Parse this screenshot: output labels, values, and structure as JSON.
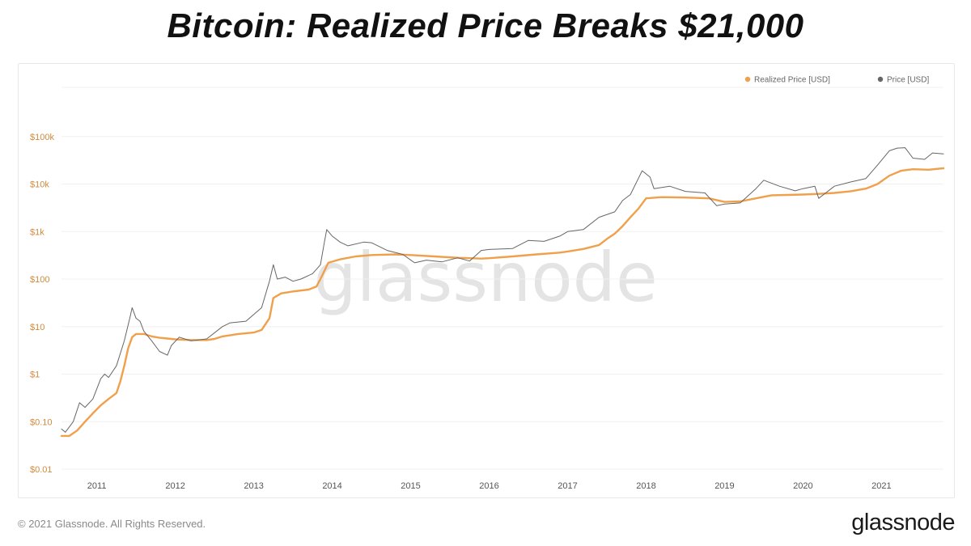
{
  "title": "Bitcoin: Realized Price Breaks $21,000",
  "footer": {
    "copyright": "© 2021 Glassnode. All Rights Reserved.",
    "brand": "glassnode"
  },
  "watermark": "glassnode",
  "colors": {
    "realized": "#f0a04b",
    "price": "#666666",
    "y_tick": "#d08a3c",
    "grid": "#f0f0f0"
  },
  "chart_data": {
    "type": "line",
    "yscale": "log",
    "ylim": [
      0.01,
      1000000
    ],
    "xlim": [
      2010.55,
      2021.79
    ],
    "grid": "horizontal",
    "legend_position": "top-right",
    "y_ticks": [
      {
        "label": "$0.01",
        "value": 0.01
      },
      {
        "label": "$0.10",
        "value": 0.1
      },
      {
        "label": "$1",
        "value": 1
      },
      {
        "label": "$10",
        "value": 10
      },
      {
        "label": "$100",
        "value": 100
      },
      {
        "label": "$1k",
        "value": 1000
      },
      {
        "label": "$10k",
        "value": 10000
      },
      {
        "label": "$100k",
        "value": 100000
      }
    ],
    "x_ticks": [
      {
        "label": "2011",
        "value": 2011
      },
      {
        "label": "2012",
        "value": 2012
      },
      {
        "label": "2013",
        "value": 2013
      },
      {
        "label": "2014",
        "value": 2014
      },
      {
        "label": "2015",
        "value": 2015
      },
      {
        "label": "2016",
        "value": 2016
      },
      {
        "label": "2017",
        "value": 2017
      },
      {
        "label": "2018",
        "value": 2018
      },
      {
        "label": "2019",
        "value": 2019
      },
      {
        "label": "2020",
        "value": 2020
      },
      {
        "label": "2021",
        "value": 2021
      }
    ],
    "series": [
      {
        "name": "Realized Price [USD]",
        "color": "#f0a04b",
        "points": [
          [
            2010.55,
            0.05
          ],
          [
            2010.65,
            0.05
          ],
          [
            2010.75,
            0.065
          ],
          [
            2010.85,
            0.1
          ],
          [
            2010.95,
            0.15
          ],
          [
            2011.05,
            0.22
          ],
          [
            2011.15,
            0.3
          ],
          [
            2011.25,
            0.4
          ],
          [
            2011.3,
            0.7
          ],
          [
            2011.35,
            1.5
          ],
          [
            2011.4,
            3.5
          ],
          [
            2011.45,
            6.0
          ],
          [
            2011.5,
            7.0
          ],
          [
            2011.6,
            7.0
          ],
          [
            2011.7,
            6.2
          ],
          [
            2011.8,
            5.8
          ],
          [
            2011.9,
            5.6
          ],
          [
            2012.0,
            5.4
          ],
          [
            2012.2,
            5.2
          ],
          [
            2012.4,
            5.2
          ],
          [
            2012.5,
            5.5
          ],
          [
            2012.6,
            6.2
          ],
          [
            2012.8,
            7.0
          ],
          [
            2013.0,
            7.5
          ],
          [
            2013.1,
            8.5
          ],
          [
            2013.2,
            15
          ],
          [
            2013.25,
            40
          ],
          [
            2013.35,
            50
          ],
          [
            2013.5,
            55
          ],
          [
            2013.7,
            60
          ],
          [
            2013.8,
            70
          ],
          [
            2013.85,
            100
          ],
          [
            2013.95,
            220
          ],
          [
            2014.1,
            260
          ],
          [
            2014.3,
            300
          ],
          [
            2014.5,
            320
          ],
          [
            2014.8,
            330
          ],
          [
            2015.0,
            320
          ],
          [
            2015.3,
            300
          ],
          [
            2015.6,
            280
          ],
          [
            2015.9,
            270
          ],
          [
            2016.0,
            275
          ],
          [
            2016.3,
            300
          ],
          [
            2016.6,
            330
          ],
          [
            2016.9,
            360
          ],
          [
            2017.0,
            380
          ],
          [
            2017.2,
            430
          ],
          [
            2017.4,
            520
          ],
          [
            2017.5,
            700
          ],
          [
            2017.6,
            900
          ],
          [
            2017.7,
            1300
          ],
          [
            2017.8,
            2000
          ],
          [
            2017.9,
            3000
          ],
          [
            2018.0,
            5000
          ],
          [
            2018.2,
            5300
          ],
          [
            2018.5,
            5200
          ],
          [
            2018.8,
            5000
          ],
          [
            2019.0,
            4200
          ],
          [
            2019.2,
            4300
          ],
          [
            2019.4,
            5000
          ],
          [
            2019.6,
            5800
          ],
          [
            2019.8,
            5900
          ],
          [
            2020.0,
            6000
          ],
          [
            2020.2,
            6200
          ],
          [
            2020.4,
            6500
          ],
          [
            2020.6,
            7000
          ],
          [
            2020.8,
            8000
          ],
          [
            2020.95,
            10000
          ],
          [
            2021.1,
            15000
          ],
          [
            2021.25,
            19000
          ],
          [
            2021.4,
            20500
          ],
          [
            2021.6,
            20000
          ],
          [
            2021.79,
            21500
          ]
        ]
      },
      {
        "name": "Price [USD]",
        "color": "#666666",
        "points": [
          [
            2010.55,
            0.07
          ],
          [
            2010.6,
            0.06
          ],
          [
            2010.7,
            0.1
          ],
          [
            2010.78,
            0.25
          ],
          [
            2010.85,
            0.2
          ],
          [
            2010.95,
            0.3
          ],
          [
            2011.05,
            0.8
          ],
          [
            2011.1,
            1.0
          ],
          [
            2011.15,
            0.85
          ],
          [
            2011.25,
            1.5
          ],
          [
            2011.35,
            5
          ],
          [
            2011.42,
            15
          ],
          [
            2011.45,
            25
          ],
          [
            2011.5,
            15
          ],
          [
            2011.55,
            13
          ],
          [
            2011.6,
            8
          ],
          [
            2011.7,
            5
          ],
          [
            2011.8,
            3
          ],
          [
            2011.9,
            2.5
          ],
          [
            2011.95,
            4
          ],
          [
            2012.05,
            6
          ],
          [
            2012.2,
            5
          ],
          [
            2012.4,
            5.5
          ],
          [
            2012.6,
            10
          ],
          [
            2012.7,
            12
          ],
          [
            2012.9,
            13
          ],
          [
            2013.1,
            25
          ],
          [
            2013.2,
            90
          ],
          [
            2013.25,
            200
          ],
          [
            2013.3,
            100
          ],
          [
            2013.4,
            110
          ],
          [
            2013.5,
            90
          ],
          [
            2013.6,
            100
          ],
          [
            2013.75,
            130
          ],
          [
            2013.85,
            200
          ],
          [
            2013.9,
            600
          ],
          [
            2013.93,
            1100
          ],
          [
            2014.0,
            800
          ],
          [
            2014.1,
            600
          ],
          [
            2014.2,
            500
          ],
          [
            2014.4,
            600
          ],
          [
            2014.5,
            580
          ],
          [
            2014.7,
            400
          ],
          [
            2014.9,
            330
          ],
          [
            2015.05,
            220
          ],
          [
            2015.2,
            250
          ],
          [
            2015.4,
            230
          ],
          [
            2015.6,
            280
          ],
          [
            2015.75,
            240
          ],
          [
            2015.9,
            400
          ],
          [
            2016.0,
            420
          ],
          [
            2016.3,
            440
          ],
          [
            2016.5,
            650
          ],
          [
            2016.7,
            620
          ],
          [
            2016.9,
            800
          ],
          [
            2017.0,
            1000
          ],
          [
            2017.2,
            1100
          ],
          [
            2017.4,
            2000
          ],
          [
            2017.6,
            2600
          ],
          [
            2017.7,
            4500
          ],
          [
            2017.8,
            6000
          ],
          [
            2017.9,
            13000
          ],
          [
            2017.95,
            19000
          ],
          [
            2018.05,
            14000
          ],
          [
            2018.1,
            8000
          ],
          [
            2018.3,
            9000
          ],
          [
            2018.5,
            7000
          ],
          [
            2018.75,
            6500
          ],
          [
            2018.9,
            3500
          ],
          [
            2019.0,
            3800
          ],
          [
            2019.2,
            4000
          ],
          [
            2019.4,
            8000
          ],
          [
            2019.5,
            12000
          ],
          [
            2019.7,
            9000
          ],
          [
            2019.9,
            7200
          ],
          [
            2020.0,
            8000
          ],
          [
            2020.15,
            9000
          ],
          [
            2020.2,
            5000
          ],
          [
            2020.4,
            9000
          ],
          [
            2020.6,
            11000
          ],
          [
            2020.8,
            13000
          ],
          [
            2020.95,
            25000
          ],
          [
            2021.1,
            50000
          ],
          [
            2021.2,
            57000
          ],
          [
            2021.3,
            58000
          ],
          [
            2021.4,
            35000
          ],
          [
            2021.55,
            33000
          ],
          [
            2021.65,
            45000
          ],
          [
            2021.79,
            43000
          ]
        ]
      }
    ]
  }
}
